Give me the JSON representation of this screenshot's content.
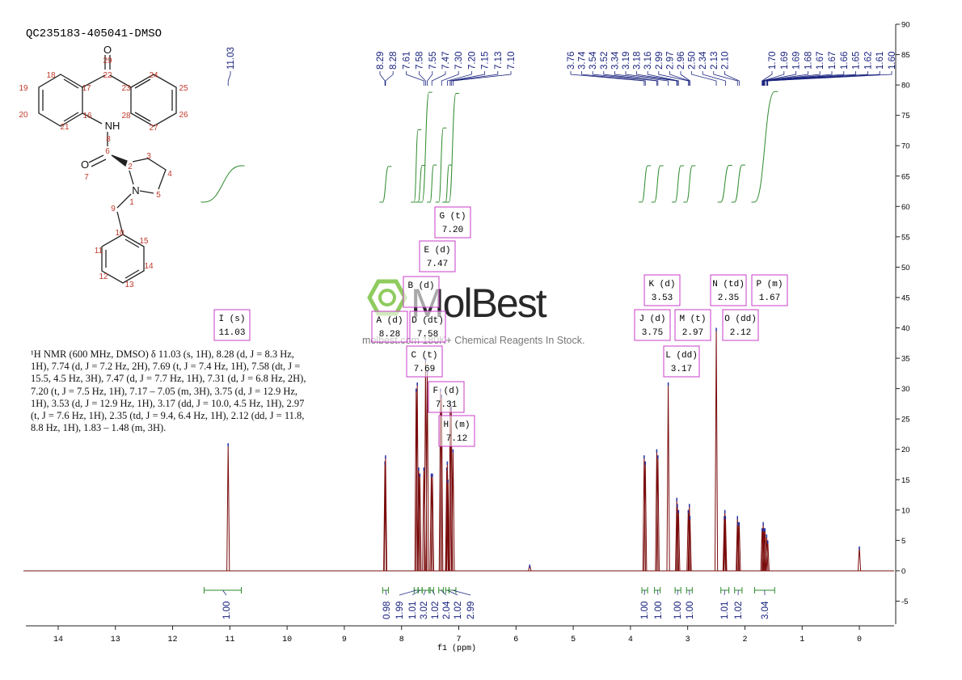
{
  "chart_data": {
    "type": "spectrum",
    "title": "QC235183-405041-DMSO",
    "x_label": "f1 (ppm)",
    "color": "#7a0c0c",
    "x": [
      11.03,
      8.29,
      8.28,
      7.745,
      7.725,
      7.7,
      7.68,
      7.61,
      7.58,
      7.55,
      7.48,
      7.46,
      7.32,
      7.3,
      7.21,
      7.2,
      7.19,
      7.15,
      7.13,
      7.1,
      5.76,
      3.76,
      3.74,
      3.54,
      3.52,
      3.34,
      3.19,
      3.18,
      3.16,
      2.99,
      2.97,
      2.96,
      2.5,
      2.36,
      2.35,
      2.34,
      2.13,
      2.12,
      2.1,
      1.7,
      1.68,
      1.67,
      1.65,
      1.62,
      1.6,
      0
    ],
    "values": [
      21,
      18,
      19,
      30,
      31,
      17,
      16,
      17,
      35,
      33,
      16,
      16,
      30,
      29,
      17,
      18,
      15,
      28,
      27,
      20,
      1,
      19,
      18,
      20,
      19,
      31,
      12,
      11,
      10,
      10,
      11,
      9,
      40,
      9,
      10,
      9,
      9,
      8,
      8,
      7,
      8,
      7,
      7,
      6,
      5,
      4
    ],
    "xlim": [
      14.6,
      -0.6
    ],
    "xticks": [
      14,
      13,
      12,
      11,
      10,
      9,
      8,
      7,
      6,
      5,
      4,
      3,
      2,
      1,
      0
    ],
    "ylim": [
      -8.8,
      90
    ],
    "yticks": [
      -5,
      0,
      5,
      10,
      15,
      20,
      25,
      30,
      35,
      40,
      45,
      50,
      55,
      60,
      65,
      70,
      75,
      80,
      85,
      90
    ],
    "peak_labels": [
      11.03,
      8.29,
      8.28,
      7.61,
      7.58,
      7.55,
      7.47,
      {
        "value": 7.3,
        "label": "7.30"
      },
      {
        "value": 7.2,
        "label": "7.20"
      },
      7.15,
      7.13,
      {
        "value": 7.1,
        "label": "7.10"
      },
      3.76,
      3.74,
      3.54,
      3.52,
      3.34,
      3.19,
      3.18,
      3.16,
      2.99,
      2.97,
      2.96,
      {
        "value": 2.5,
        "label": "2.50"
      },
      2.34,
      2.13,
      {
        "value": 2.1,
        "label": "2.10"
      },
      {
        "value": 1.7,
        "label": "1.70"
      },
      1.69,
      1.69,
      1.68,
      1.67,
      1.67,
      1.66,
      1.65,
      1.62,
      1.61,
      {
        "value": 1.6,
        "label": "1.60"
      }
    ],
    "integrals": {
      "color": "#2e8b2e",
      "from": [
        11.45,
        8.33,
        7.78,
        7.71,
        7.64,
        7.5,
        7.35,
        7.23,
        7.17,
        3.8,
        3.58,
        3.22,
        3.02,
        2.42,
        2.18,
        1.83
      ],
      "to": [
        10.8,
        8.23,
        7.71,
        7.64,
        7.52,
        7.44,
        7.27,
        7.17,
        7.05,
        3.7,
        3.48,
        3.12,
        2.92,
        2.28,
        2.05,
        1.48
      ],
      "values": [
        1,
        0.98,
        1.99,
        1.01,
        3.02,
        1.02,
        2.04,
        1.02,
        2.99,
        1,
        1,
        1,
        1,
        1.01,
        1.02,
        3.04
      ],
      "value_labels": [
        "1.00",
        "0.98",
        "1.99",
        "1.01",
        "3.02",
        "1.02",
        "2.04",
        "1.02",
        "2.99",
        "1.00",
        "1.00",
        "1.00",
        "1.00",
        "1.01",
        "1.02",
        "3.04"
      ]
    },
    "multiplets": [
      {
        "label": "I (s)",
        "shift": 11.03
      },
      {
        "label": "A (d)",
        "shift": 8.28
      },
      {
        "label": "B (d)"
      },
      {
        "label": "C (t)",
        "shift": 7.69
      },
      {
        "label": "D (dt)",
        "shift": 7.58
      },
      {
        "label": "E (d)",
        "shift": 7.47
      },
      {
        "label": "F (d)",
        "shift": 7.31
      },
      {
        "label": "G (t)",
        "shift": {
          "value": 7.2,
          "label": "7.20"
        }
      },
      {
        "label": "H (m)",
        "shift": 7.12
      },
      {
        "label": "J (d)",
        "shift": 3.75
      },
      {
        "label": "K (d)",
        "shift": 3.53
      },
      {
        "label": "L (dd)",
        "shift": 3.17
      },
      {
        "label": "M (t)",
        "shift": 2.97
      },
      {
        "label": "N (td)",
        "shift": 2.35
      },
      {
        "label": "O (dd)",
        "shift": 2.12
      },
      {
        "label": "P (m)",
        "shift": 1.67
      }
    ],
    "description": "¹H NMR (600 MHz, DMSO) δ 11.03 (s, 1H), 8.28 (d, J = 8.3 Hz, 1H), 7.74 (d, J = 7.2 Hz, 2H), 7.69 (t, J = 7.4 Hz, 1H), 7.58 (dt, J = 15.5, 4.5 Hz, 3H), 7.47 (d, J = 7.7 Hz, 1H), 7.31 (d, J = 6.8 Hz, 2H), 7.20 (t, J = 7.5 Hz, 1H), 7.17 – 7.05 (m, 3H), 3.75 (d, J = 12.9 Hz, 1H), 3.53 (d, J = 12.9 Hz, 1H), 3.17 (dd, J = 10.0, 4.5 Hz, 1H), 2.97 (t, J = 7.6 Hz, 1H), 2.35 (td, J = 9.4, 6.4 Hz, 1H), 2.12 (dd, J = 11.8, 8.8 Hz, 1H), 1.83 – 1.48 (m, 3H).",
    "watermark": {
      "brand": "MolBest",
      "tagline": "molbest.com 180K+ Chemical Reagents In Stock."
    }
  },
  "structure": {
    "labels": [
      "O",
      "29",
      "22",
      "18",
      "17",
      "19",
      "20",
      "21",
      "16",
      "23",
      "24",
      "25",
      "26",
      "27",
      "28",
      "NH",
      "8",
      "6",
      "O",
      "7",
      "2",
      "3",
      "4",
      "5",
      "N",
      "1",
      "9",
      "10",
      "15",
      "14",
      "13",
      "12",
      "11"
    ]
  }
}
